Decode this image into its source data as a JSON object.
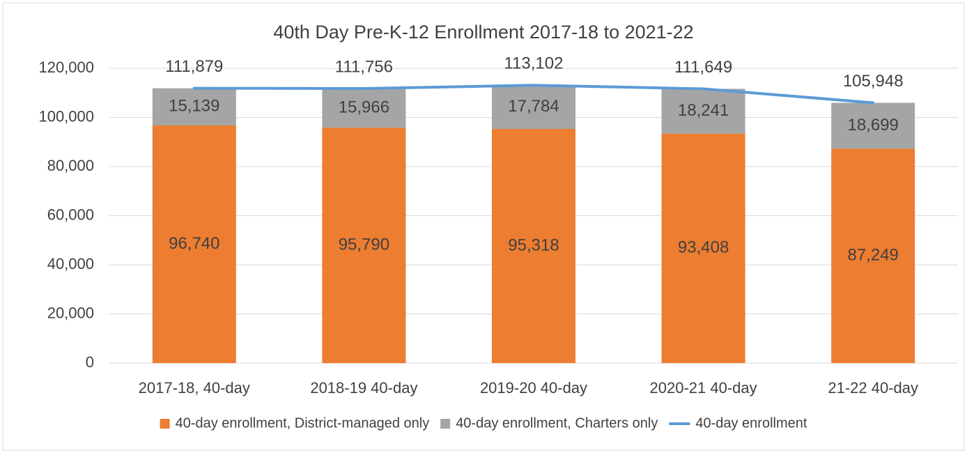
{
  "chart_data": {
    "type": "stacked-bar-line",
    "title": "40th Day Pre-K-12 Enrollment 2017-18 to 2021-22",
    "categories": [
      "2017-18, 40-day",
      "2018-19 40-day",
      "2019-20 40-day",
      "2020-21 40-day",
      "21-22 40-day"
    ],
    "series": [
      {
        "name": "40-day enrollment, District-managed only",
        "color": "#ED7D31",
        "kind": "bar",
        "values": [
          96740,
          95790,
          95318,
          93408,
          87249
        ],
        "value_labels": [
          "96,740",
          "95,790",
          "95,318",
          "93,408",
          "87,249"
        ]
      },
      {
        "name": "40-day enrollment, Charters only",
        "color": "#A5A5A5",
        "kind": "bar",
        "values": [
          15139,
          15966,
          17784,
          18241,
          18699
        ],
        "value_labels": [
          "15,139",
          "15,966",
          "17,784",
          "18,241",
          "18,699"
        ]
      },
      {
        "name": "40-day enrollment",
        "color": "#5B9BD5",
        "kind": "line",
        "values": [
          111879,
          111756,
          113102,
          111649,
          105948
        ],
        "value_labels": [
          "111,879",
          "111,756",
          "113,102",
          "111,649",
          "105,948"
        ]
      }
    ],
    "ylim": [
      0,
      120000
    ],
    "yticks": [
      0,
      {
        "value": 20000,
        "label": "20,000"
      },
      {
        "value": 40000,
        "label": "40,000"
      },
      {
        "value": 60000,
        "label": "60,000"
      },
      {
        "value": 80000,
        "label": "80,000"
      },
      {
        "value": 100000,
        "label": "100,000"
      },
      {
        "value": 120000,
        "label": "120,000"
      }
    ],
    "grid": true,
    "legend": "bottom"
  }
}
